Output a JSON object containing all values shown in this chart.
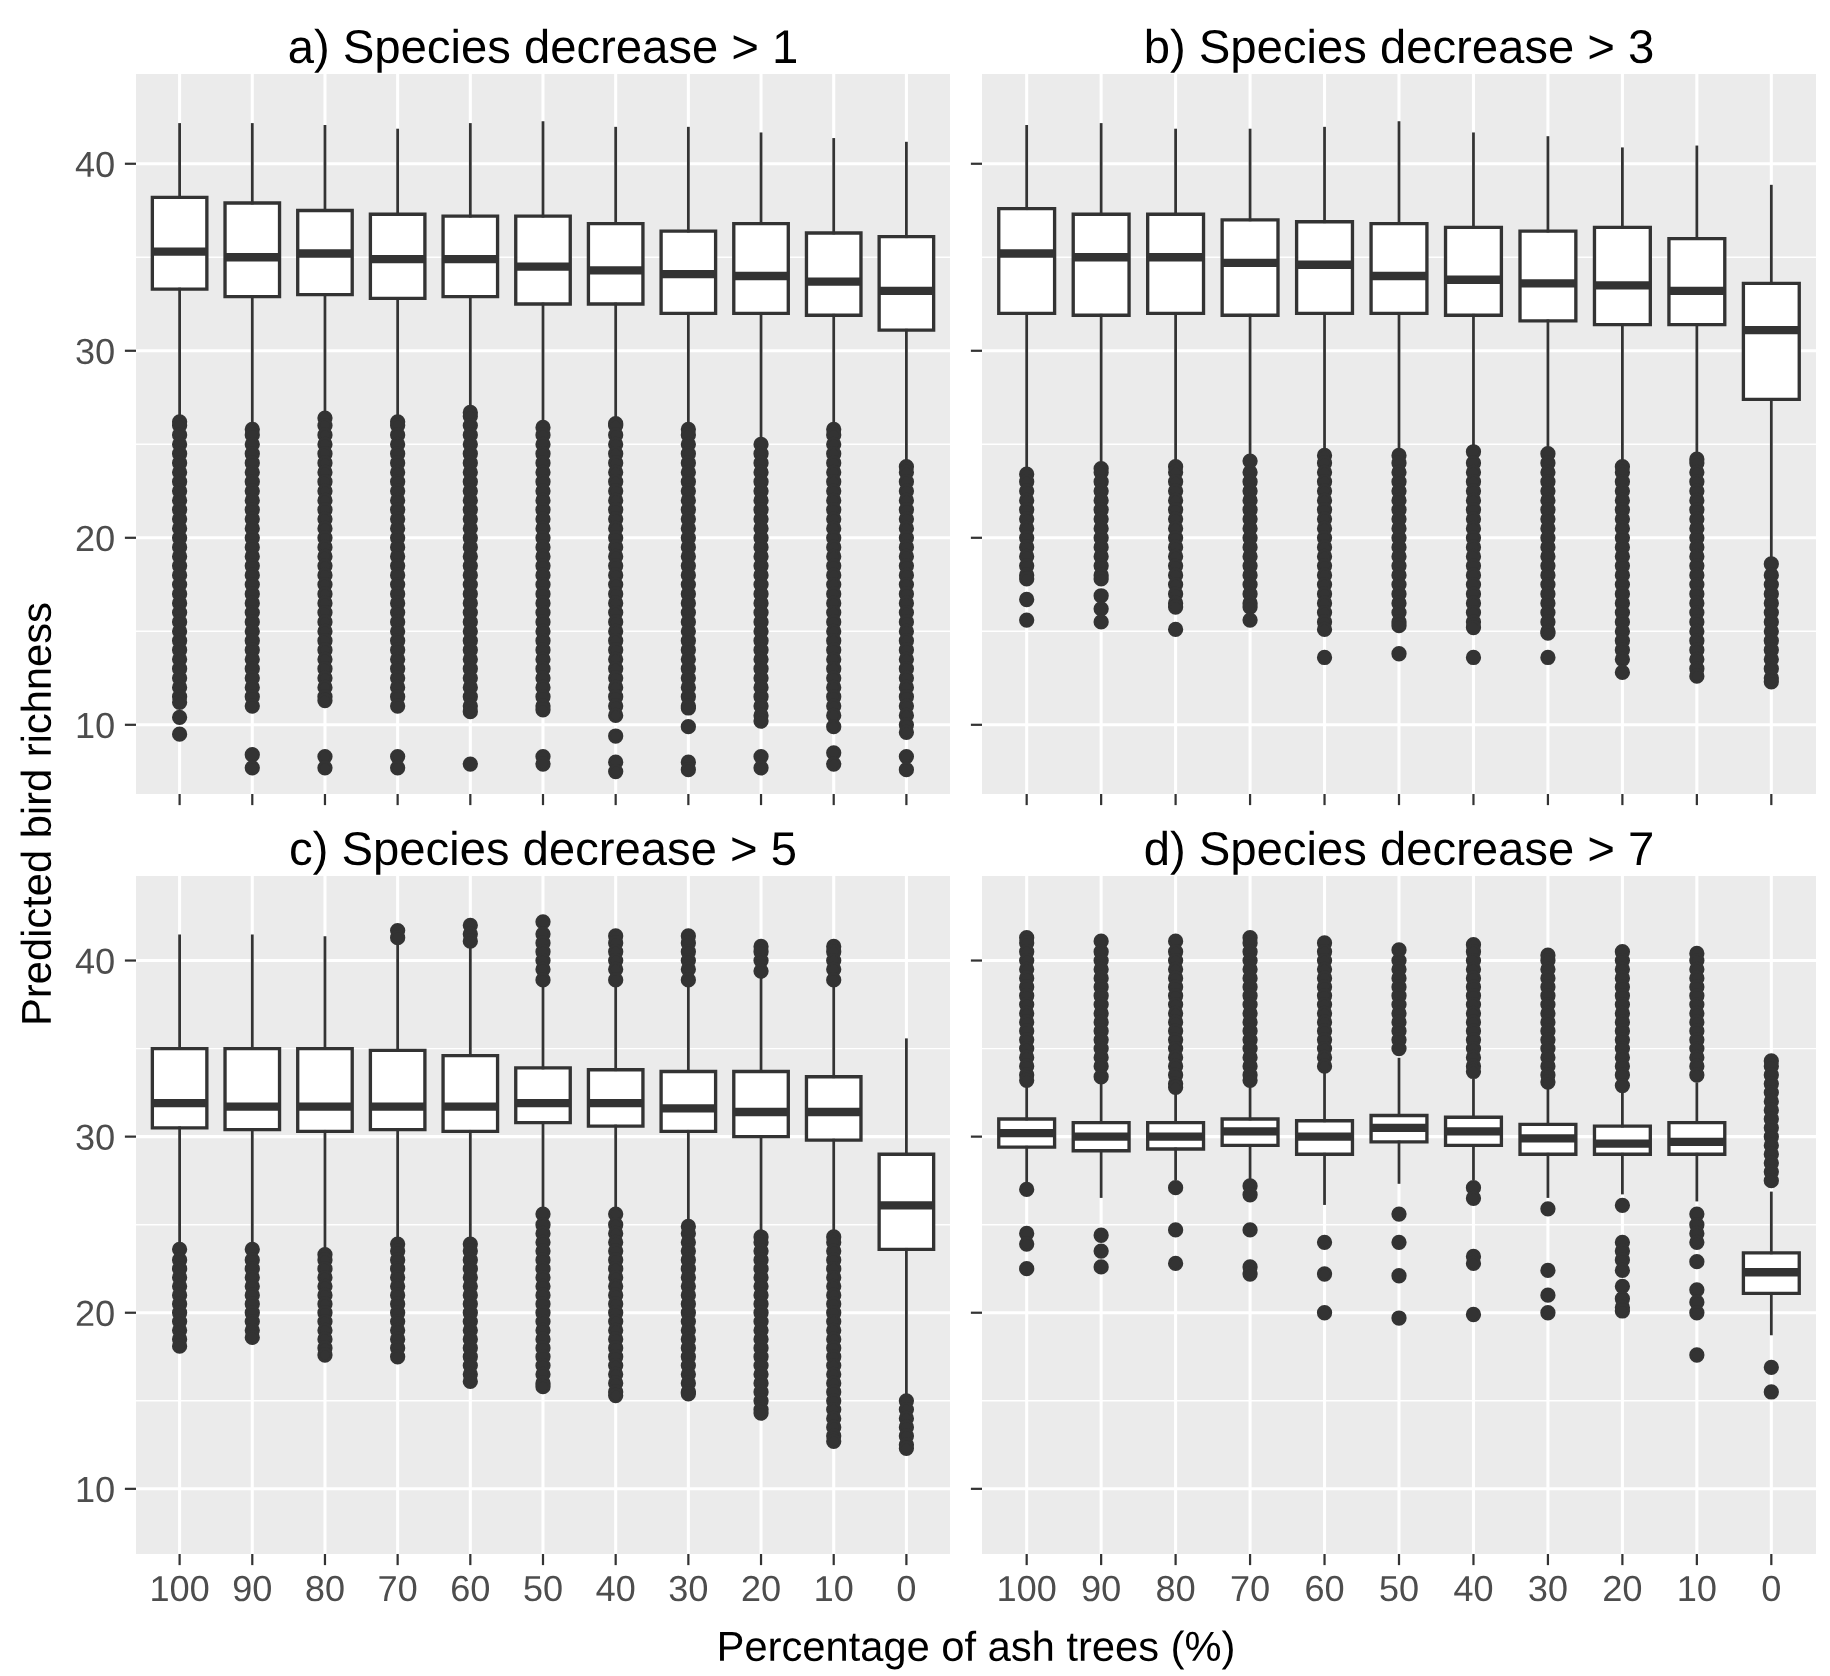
{
  "chart_data": [
    {
      "type": "box",
      "title": "a) Species decrease > 1",
      "ylabel": "Predicted bird richness",
      "categories": [
        "100",
        "90",
        "80",
        "70",
        "60",
        "50",
        "40",
        "30",
        "20",
        "10",
        "0"
      ],
      "ylim": [
        6.3,
        44.8
      ],
      "yticks": [
        10,
        20,
        30,
        40
      ],
      "grid": true,
      "tick_labels": "y",
      "series": [
        {
          "color": "#333333",
          "boxes": [
            {
              "low": 26.3,
              "q1": 33.3,
              "median": 35.3,
              "q3": 38.2,
              "high": 42.1,
              "outliers": [
                26.2,
                26,
                25.5,
                25,
                24.5,
                24,
                23.5,
                23,
                22.5,
                22,
                21.5,
                21,
                20.5,
                20,
                19.5,
                19,
                18.5,
                18,
                17.5,
                17,
                16.5,
                16,
                15.5,
                15,
                14.5,
                14,
                13.5,
                13,
                12.5,
                12,
                11.5,
                11.2,
                10.4,
                9.5
              ]
            },
            {
              "low": 25.9,
              "q1": 32.9,
              "median": 35.0,
              "q3": 37.9,
              "high": 42.1,
              "outliers": [
                25.8,
                25.5,
                25,
                24.5,
                24,
                23.5,
                23,
                22.5,
                22,
                21.5,
                21,
                20.5,
                20,
                19.5,
                19,
                18.5,
                18,
                17.5,
                17,
                16.5,
                16,
                15.5,
                15,
                14.5,
                14,
                13.5,
                13,
                12.5,
                12,
                11.5,
                11,
                8.4,
                7.7
              ]
            },
            {
              "low": 26.5,
              "q1": 33.0,
              "median": 35.2,
              "q3": 37.5,
              "high": 42.0,
              "outliers": [
                26.4,
                26,
                25.5,
                25,
                24.5,
                24,
                23.5,
                23,
                22.5,
                22,
                21.5,
                21,
                20.5,
                20,
                19.5,
                19,
                18.5,
                18,
                17.5,
                17,
                16.5,
                16,
                15.5,
                15,
                14.5,
                14,
                13.5,
                13,
                12.5,
                12,
                11.5,
                11.3,
                8.3,
                7.7
              ]
            },
            {
              "low": 26.3,
              "q1": 32.8,
              "median": 34.9,
              "q3": 37.3,
              "high": 41.8,
              "outliers": [
                26.2,
                26,
                25.5,
                25,
                24.5,
                24,
                23.5,
                23,
                22.5,
                22,
                21.5,
                21,
                20.5,
                20,
                19.5,
                19,
                18.5,
                18,
                17.5,
                17,
                16.5,
                16,
                15.5,
                15,
                14.5,
                14,
                13.5,
                13,
                12.5,
                12,
                11.5,
                11,
                8.3,
                7.7
              ]
            },
            {
              "low": 26.8,
              "q1": 32.9,
              "median": 34.9,
              "q3": 37.2,
              "high": 42.1,
              "outliers": [
                26.7,
                26.5,
                26,
                25.5,
                25,
                24.5,
                24,
                23.5,
                23,
                22.5,
                22,
                21.5,
                21,
                20.5,
                20,
                19.5,
                19,
                18.5,
                18,
                17.5,
                17,
                16.5,
                16,
                15.5,
                15,
                14.5,
                14,
                13.5,
                13,
                12.5,
                12,
                11.5,
                11,
                10.7,
                7.9
              ]
            },
            {
              "low": 26.0,
              "q1": 32.5,
              "median": 34.5,
              "q3": 37.2,
              "high": 42.2,
              "outliers": [
                25.9,
                25.5,
                25,
                24.5,
                24,
                23.5,
                23,
                22.5,
                22,
                21.5,
                21,
                20.5,
                20,
                19.5,
                19,
                18.5,
                18,
                17.5,
                17,
                16.5,
                16,
                15.5,
                15,
                14.5,
                14,
                13.5,
                13,
                12.5,
                12,
                11.5,
                11,
                10.8,
                8.3,
                7.9
              ]
            },
            {
              "low": 26.2,
              "q1": 32.5,
              "median": 34.3,
              "q3": 36.8,
              "high": 41.9,
              "outliers": [
                26.1,
                26,
                25.5,
                25,
                24.5,
                24,
                23.5,
                23,
                22.5,
                22,
                21.5,
                21,
                20.5,
                20,
                19.5,
                19,
                18.5,
                18,
                17.5,
                17,
                16.5,
                16,
                15.5,
                15,
                14.5,
                14,
                13.5,
                13,
                12.5,
                12,
                11.5,
                11,
                10.5,
                9.4,
                8,
                7.5
              ]
            },
            {
              "low": 25.9,
              "q1": 32.0,
              "median": 34.1,
              "q3": 36.4,
              "high": 41.9,
              "outliers": [
                25.8,
                25.5,
                25,
                24.5,
                24,
                23.5,
                23,
                22.5,
                22,
                21.5,
                21,
                20.5,
                20,
                19.5,
                19,
                18.5,
                18,
                17.5,
                17,
                16.5,
                16,
                15.5,
                15,
                14.5,
                14,
                13.5,
                13,
                12.5,
                12,
                11.5,
                11,
                10.9,
                9.9,
                8,
                7.6
              ]
            },
            {
              "low": 25.1,
              "q1": 32.0,
              "median": 34.0,
              "q3": 36.8,
              "high": 41.6,
              "outliers": [
                25,
                24.5,
                24,
                23.5,
                23,
                22.5,
                22,
                21.5,
                21,
                20.5,
                20,
                19.5,
                19,
                18.5,
                18,
                17.5,
                17,
                16.5,
                16,
                15.5,
                15,
                14.5,
                14,
                13.5,
                13,
                12.5,
                12,
                11.5,
                11,
                10.5,
                10.2,
                8.3,
                7.7
              ]
            },
            {
              "low": 25.9,
              "q1": 31.9,
              "median": 33.7,
              "q3": 36.3,
              "high": 41.3,
              "outliers": [
                25.8,
                25.5,
                25,
                24.5,
                24,
                23.5,
                23,
                22.5,
                22,
                21.5,
                21,
                20.5,
                20,
                19.5,
                19,
                18.5,
                18,
                17.5,
                17,
                16.5,
                16,
                15.5,
                15,
                14.5,
                14,
                13.5,
                13,
                12.5,
                12,
                11.5,
                11,
                10.5,
                9.9,
                8.5,
                7.9
              ]
            },
            {
              "low": 23.9,
              "q1": 31.1,
              "median": 33.2,
              "q3": 36.1,
              "high": 41.1,
              "outliers": [
                23.8,
                23.5,
                23,
                22.5,
                22,
                21.5,
                21,
                20.5,
                20,
                19.5,
                19,
                18.5,
                18,
                17.5,
                17,
                16.5,
                16,
                15.5,
                15,
                14.5,
                14,
                13.5,
                13,
                12.5,
                12,
                11.5,
                11,
                10.5,
                10,
                9.6,
                8.3,
                7.6
              ]
            }
          ]
        }
      ]
    },
    {
      "type": "box",
      "title": "b) Species decrease > 3",
      "categories": [
        "100",
        "90",
        "80",
        "70",
        "60",
        "50",
        "40",
        "30",
        "20",
        "10",
        "0"
      ],
      "ylim": [
        6.3,
        44.8
      ],
      "yticks": [
        10,
        20,
        30,
        40
      ],
      "grid": true,
      "tick_labels": false,
      "series": [
        {
          "color": "#333333",
          "boxes": [
            {
              "low": 23.6,
              "q1": 32.0,
              "median": 35.2,
              "q3": 37.6,
              "high": 42.0,
              "outliers": [
                23.4,
                23,
                22.5,
                22,
                21.5,
                21,
                20.5,
                20,
                19.5,
                19,
                18.5,
                18,
                17.8,
                16.7,
                15.6
              ]
            },
            {
              "low": 23.9,
              "q1": 31.9,
              "median": 35.0,
              "q3": 37.3,
              "high": 42.1,
              "outliers": [
                23.7,
                23.5,
                23,
                22.5,
                22,
                21.5,
                21,
                20.5,
                20,
                19.5,
                19,
                18.5,
                18,
                17.8,
                16.9,
                16.2,
                15.5
              ]
            },
            {
              "low": 24.0,
              "q1": 32.0,
              "median": 35.0,
              "q3": 37.3,
              "high": 41.8,
              "outliers": [
                23.8,
                23.5,
                23,
                22.5,
                22,
                21.5,
                21,
                20.5,
                20,
                19.5,
                19,
                18.5,
                18,
                17.5,
                17,
                16.5,
                16.3,
                15.1
              ]
            },
            {
              "low": 24.3,
              "q1": 31.9,
              "median": 34.7,
              "q3": 37.0,
              "high": 41.8,
              "outliers": [
                24.1,
                23.5,
                23,
                22.5,
                22,
                21.5,
                21,
                20.5,
                20,
                19.5,
                19,
                18.5,
                18,
                17.5,
                17,
                16.5,
                16.3,
                15.6
              ]
            },
            {
              "low": 24.6,
              "q1": 32.0,
              "median": 34.6,
              "q3": 36.9,
              "high": 41.9,
              "outliers": [
                24.4,
                24,
                23.5,
                23,
                22.5,
                22,
                21.5,
                21,
                20.5,
                20,
                19.5,
                19,
                18.5,
                18,
                17.5,
                17,
                16.5,
                16,
                15.5,
                15.1,
                13.6
              ]
            },
            {
              "low": 24.6,
              "q1": 32.0,
              "median": 34.0,
              "q3": 36.8,
              "high": 42.2,
              "outliers": [
                24.4,
                24,
                23.5,
                23,
                22.5,
                22,
                21.5,
                21,
                20.5,
                20,
                19.5,
                19,
                18.5,
                18,
                17.5,
                17,
                16.5,
                16,
                15.5,
                15.3,
                13.8
              ]
            },
            {
              "low": 24.8,
              "q1": 31.9,
              "median": 33.8,
              "q3": 36.6,
              "high": 41.6,
              "outliers": [
                24.6,
                24,
                23.5,
                23,
                22.5,
                22,
                21.5,
                21,
                20.5,
                20,
                19.5,
                19,
                18.5,
                18,
                17.5,
                17,
                16.5,
                16,
                15.5,
                15.2,
                13.6
              ]
            },
            {
              "low": 24.7,
              "q1": 31.6,
              "median": 33.6,
              "q3": 36.4,
              "high": 41.4,
              "outliers": [
                24.5,
                24,
                23.5,
                23,
                22.5,
                22,
                21.5,
                21,
                20.5,
                20,
                19.5,
                19,
                18.5,
                18,
                17.5,
                17,
                16.5,
                16,
                15.5,
                15,
                14.9,
                13.6
              ]
            },
            {
              "low": 24.0,
              "q1": 31.4,
              "median": 33.5,
              "q3": 36.6,
              "high": 40.8,
              "outliers": [
                23.8,
                23.5,
                23,
                22.5,
                22,
                21.5,
                21,
                20.5,
                20,
                19.5,
                19,
                18.5,
                18,
                17.5,
                17,
                16.5,
                16,
                15.5,
                15,
                14.5,
                14,
                13.5,
                12.8
              ]
            },
            {
              "low": 24.4,
              "q1": 31.4,
              "median": 33.2,
              "q3": 36.0,
              "high": 40.9,
              "outliers": [
                24.2,
                24,
                23.5,
                23,
                22.5,
                22,
                21.5,
                21,
                20.5,
                20,
                19.5,
                19,
                18.5,
                18,
                17.5,
                17,
                16.5,
                16,
                15.5,
                15,
                14.5,
                14,
                13.5,
                13,
                12.6
              ]
            },
            {
              "low": 18.8,
              "q1": 27.4,
              "median": 31.1,
              "q3": 33.6,
              "high": 38.8,
              "outliers": [
                18.6,
                18,
                17.5,
                17,
                16.5,
                16,
                15.5,
                15,
                14.5,
                14,
                13.5,
                13,
                12.5,
                12.3
              ]
            }
          ]
        }
      ]
    },
    {
      "type": "box",
      "title": "c) Species decrease > 5",
      "xlabel": "Percentage of ash trees (%)",
      "categories": [
        "100",
        "90",
        "80",
        "70",
        "60",
        "50",
        "40",
        "30",
        "20",
        "10",
        "0"
      ],
      "ylim": [
        6.3,
        44.8
      ],
      "yticks": [
        10,
        20,
        30,
        40
      ],
      "grid": true,
      "series": [
        {
          "color": "#333333",
          "boxes": [
            {
              "low": 23.8,
              "q1": 30.5,
              "median": 31.9,
              "q3": 35.0,
              "high": 41.4,
              "outliers": [
                23.6,
                23,
                22.5,
                22,
                21.5,
                21,
                20.5,
                20,
                19.5,
                19,
                18.5,
                18.1
              ]
            },
            {
              "low": 23.8,
              "q1": 30.4,
              "median": 31.7,
              "q3": 35.0,
              "high": 41.4,
              "outliers": [
                23.6,
                23,
                22.5,
                22,
                21.5,
                21,
                20.5,
                20,
                19.5,
                19,
                18.6
              ]
            },
            {
              "low": 23.5,
              "q1": 30.3,
              "median": 31.7,
              "q3": 35.0,
              "high": 41.3,
              "outliers": [
                23.3,
                23,
                22.5,
                22,
                21.5,
                21,
                20.5,
                20,
                19.5,
                19,
                18.5,
                18,
                17.6
              ]
            },
            {
              "low": 24.1,
              "q1": 30.4,
              "median": 31.7,
              "q3": 34.9,
              "high": 41.0,
              "outliers": [
                41.7,
                41.3,
                23.9,
                23.5,
                23,
                22.5,
                22,
                21.5,
                21,
                20.5,
                20,
                19.5,
                19,
                18.5,
                18,
                17.5
              ]
            },
            {
              "low": 24.1,
              "q1": 30.3,
              "median": 31.7,
              "q3": 34.6,
              "high": 40.9,
              "outliers": [
                42,
                41.5,
                41.1,
                23.9,
                23.5,
                23,
                22.5,
                22,
                21.5,
                21,
                20.5,
                20,
                19.5,
                19,
                18.5,
                18,
                17.5,
                17,
                16.5,
                16.1
              ]
            },
            {
              "low": 25.8,
              "q1": 30.8,
              "median": 31.9,
              "q3": 33.9,
              "high": 38.7,
              "outliers": [
                42.2,
                41.5,
                41,
                40.5,
                40,
                39.5,
                38.9,
                25.6,
                25,
                24.5,
                24,
                23.5,
                23,
                22.5,
                22,
                21.5,
                21,
                20.5,
                20,
                19.5,
                19,
                18.5,
                18,
                17.5,
                17,
                16.5,
                16,
                15.8
              ]
            },
            {
              "low": 25.8,
              "q1": 30.6,
              "median": 31.9,
              "q3": 33.8,
              "high": 38.7,
              "outliers": [
                41.4,
                41,
                40.5,
                40,
                39.5,
                38.9,
                25.6,
                25,
                24.5,
                24,
                23.5,
                23,
                22.5,
                22,
                21.5,
                21,
                20.5,
                20,
                19.5,
                19,
                18.5,
                18,
                17.5,
                17,
                16.5,
                16,
                15.5,
                15.3
              ]
            },
            {
              "low": 25.1,
              "q1": 30.3,
              "median": 31.6,
              "q3": 33.7,
              "high": 38.7,
              "outliers": [
                41.4,
                41,
                40.5,
                40,
                39.5,
                38.9,
                24.9,
                24.5,
                24,
                23.5,
                23,
                22.5,
                22,
                21.5,
                21,
                20.5,
                20,
                19.5,
                19,
                18.5,
                18,
                17.5,
                17,
                16.5,
                16,
                15.5,
                15.4
              ]
            },
            {
              "low": 24.5,
              "q1": 30.0,
              "median": 31.4,
              "q3": 33.7,
              "high": 39.2,
              "outliers": [
                40.8,
                40.5,
                40,
                39.4,
                24.3,
                24,
                23.5,
                23,
                22.5,
                22,
                21.5,
                21,
                20.5,
                20,
                19.5,
                19,
                18.5,
                18,
                17.5,
                17,
                16.5,
                16,
                15.5,
                15,
                14.5,
                14.3
              ]
            },
            {
              "low": 24.5,
              "q1": 29.8,
              "median": 31.4,
              "q3": 33.4,
              "high": 38.7,
              "outliers": [
                40.8,
                40.5,
                40,
                39.5,
                38.9,
                24.3,
                24,
                23.5,
                23,
                22.5,
                22,
                21.5,
                21,
                20.5,
                20,
                19.5,
                19,
                18.5,
                18,
                17.5,
                17,
                16.5,
                16,
                15.5,
                15,
                14.5,
                14,
                13.5,
                13,
                12.7
              ]
            },
            {
              "low": 15.3,
              "q1": 23.6,
              "median": 26.1,
              "q3": 29.0,
              "high": 35.5,
              "outliers": [
                15,
                14.5,
                14,
                13.5,
                13,
                12.5,
                12.3
              ]
            }
          ]
        }
      ]
    },
    {
      "type": "box",
      "title": "d) Species decrease > 7",
      "categories": [
        "100",
        "90",
        "80",
        "70",
        "60",
        "50",
        "40",
        "30",
        "20",
        "10",
        "0"
      ],
      "ylim": [
        6.3,
        44.8
      ],
      "yticks": [
        10,
        20,
        30,
        40
      ],
      "grid": true,
      "tick_labels": "x",
      "series": [
        {
          "color": "#333333",
          "boxes": [
            {
              "low": 27.4,
              "q1": 29.4,
              "median": 30.2,
              "q3": 31.0,
              "high": 33.0,
              "outliers": [
                41.3,
                41,
                40.5,
                40,
                39.5,
                39,
                38.5,
                38,
                37.5,
                37,
                36.5,
                36,
                35.5,
                35,
                34.5,
                34,
                33.5,
                33.2,
                27,
                24.5,
                23.9,
                22.5
              ]
            },
            {
              "low": 26.6,
              "q1": 29.2,
              "median": 30.0,
              "q3": 30.8,
              "high": 33.2,
              "outliers": [
                41.1,
                40.5,
                40,
                39.5,
                39,
                38.5,
                38,
                37.5,
                37,
                36.5,
                36,
                35.5,
                35,
                34.5,
                34,
                33.4,
                24.4,
                23.5,
                22.6
              ]
            },
            {
              "low": 27.6,
              "q1": 29.3,
              "median": 30.0,
              "q3": 30.8,
              "high": 32.6,
              "outliers": [
                41.1,
                40.5,
                40,
                39.5,
                39,
                38.5,
                38,
                37.5,
                37,
                36.5,
                36,
                35.5,
                35,
                34.5,
                34,
                33.5,
                33,
                32.8,
                27.1,
                24.7,
                22.8
              ]
            },
            {
              "low": 27.5,
              "q1": 29.5,
              "median": 30.3,
              "q3": 31.0,
              "high": 33.0,
              "outliers": [
                41.3,
                41,
                40.5,
                40,
                39.5,
                39,
                38.5,
                38,
                37.5,
                37,
                36.5,
                36,
                35.5,
                35,
                34.5,
                34,
                33.5,
                33.2,
                27.2,
                26.7,
                24.7,
                22.6,
                22.2
              ]
            },
            {
              "low": 26.2,
              "q1": 29.0,
              "median": 30.0,
              "q3": 30.9,
              "high": 33.8,
              "outliers": [
                41,
                40.5,
                40,
                39.5,
                39,
                38.5,
                38,
                37.5,
                37,
                36.5,
                36,
                35.5,
                35,
                34.5,
                34,
                24,
                22.2,
                20
              ]
            },
            {
              "low": 27.4,
              "q1": 29.7,
              "median": 30.5,
              "q3": 31.2,
              "high": 34.4,
              "outliers": [
                40.6,
                40,
                39.5,
                39,
                38.5,
                38,
                37.5,
                37,
                36.5,
                36,
                35.5,
                35,
                25.6,
                24,
                22.1,
                19.7
              ]
            },
            {
              "low": 27.6,
              "q1": 29.5,
              "median": 30.3,
              "q3": 31.1,
              "high": 33.2,
              "outliers": [
                40.9,
                40.5,
                40,
                39.5,
                39,
                38.5,
                38,
                37.5,
                37,
                36.5,
                36,
                35.5,
                35,
                34.5,
                34,
                33.7,
                27.1,
                26.5,
                23.2,
                22.8,
                19.9
              ]
            },
            {
              "low": 26.6,
              "q1": 29.0,
              "median": 29.9,
              "q3": 30.7,
              "high": 32.9,
              "outliers": [
                40.3,
                40,
                39.5,
                39,
                38.5,
                38,
                37.5,
                37,
                36.5,
                36,
                35.5,
                35,
                34.5,
                34,
                33.5,
                33.1,
                25.9,
                22.4,
                21,
                20
              ]
            },
            {
              "low": 26.8,
              "q1": 29.0,
              "median": 29.6,
              "q3": 30.6,
              "high": 32.6,
              "outliers": [
                40.5,
                40,
                39.5,
                39,
                38.5,
                38,
                37.5,
                37,
                36.5,
                36,
                35.5,
                35,
                34.5,
                34,
                33.5,
                32.9,
                26.1,
                24,
                23.5,
                23,
                22.4,
                21.5,
                20.8,
                20.3,
                20.1
              ]
            },
            {
              "low": 26.4,
              "q1": 29.0,
              "median": 29.7,
              "q3": 30.8,
              "high": 33.0,
              "outliers": [
                40.4,
                40,
                39.5,
                39,
                38.5,
                38,
                37.5,
                37,
                36.5,
                36,
                35.5,
                35,
                34.5,
                34,
                33.5,
                25.6,
                25,
                24.5,
                24,
                22.9,
                21.3,
                20.6,
                20,
                17.6
              ]
            },
            {
              "low": 18.8,
              "q1": 21.1,
              "median": 22.3,
              "q3": 23.4,
              "high": 26.8,
              "outliers": [
                34.3,
                34,
                33.5,
                33,
                32.5,
                32,
                31.5,
                31,
                30.5,
                30,
                29.5,
                29,
                28.5,
                28,
                27.5,
                16.9,
                15.5
              ]
            }
          ]
        }
      ]
    }
  ]
}
